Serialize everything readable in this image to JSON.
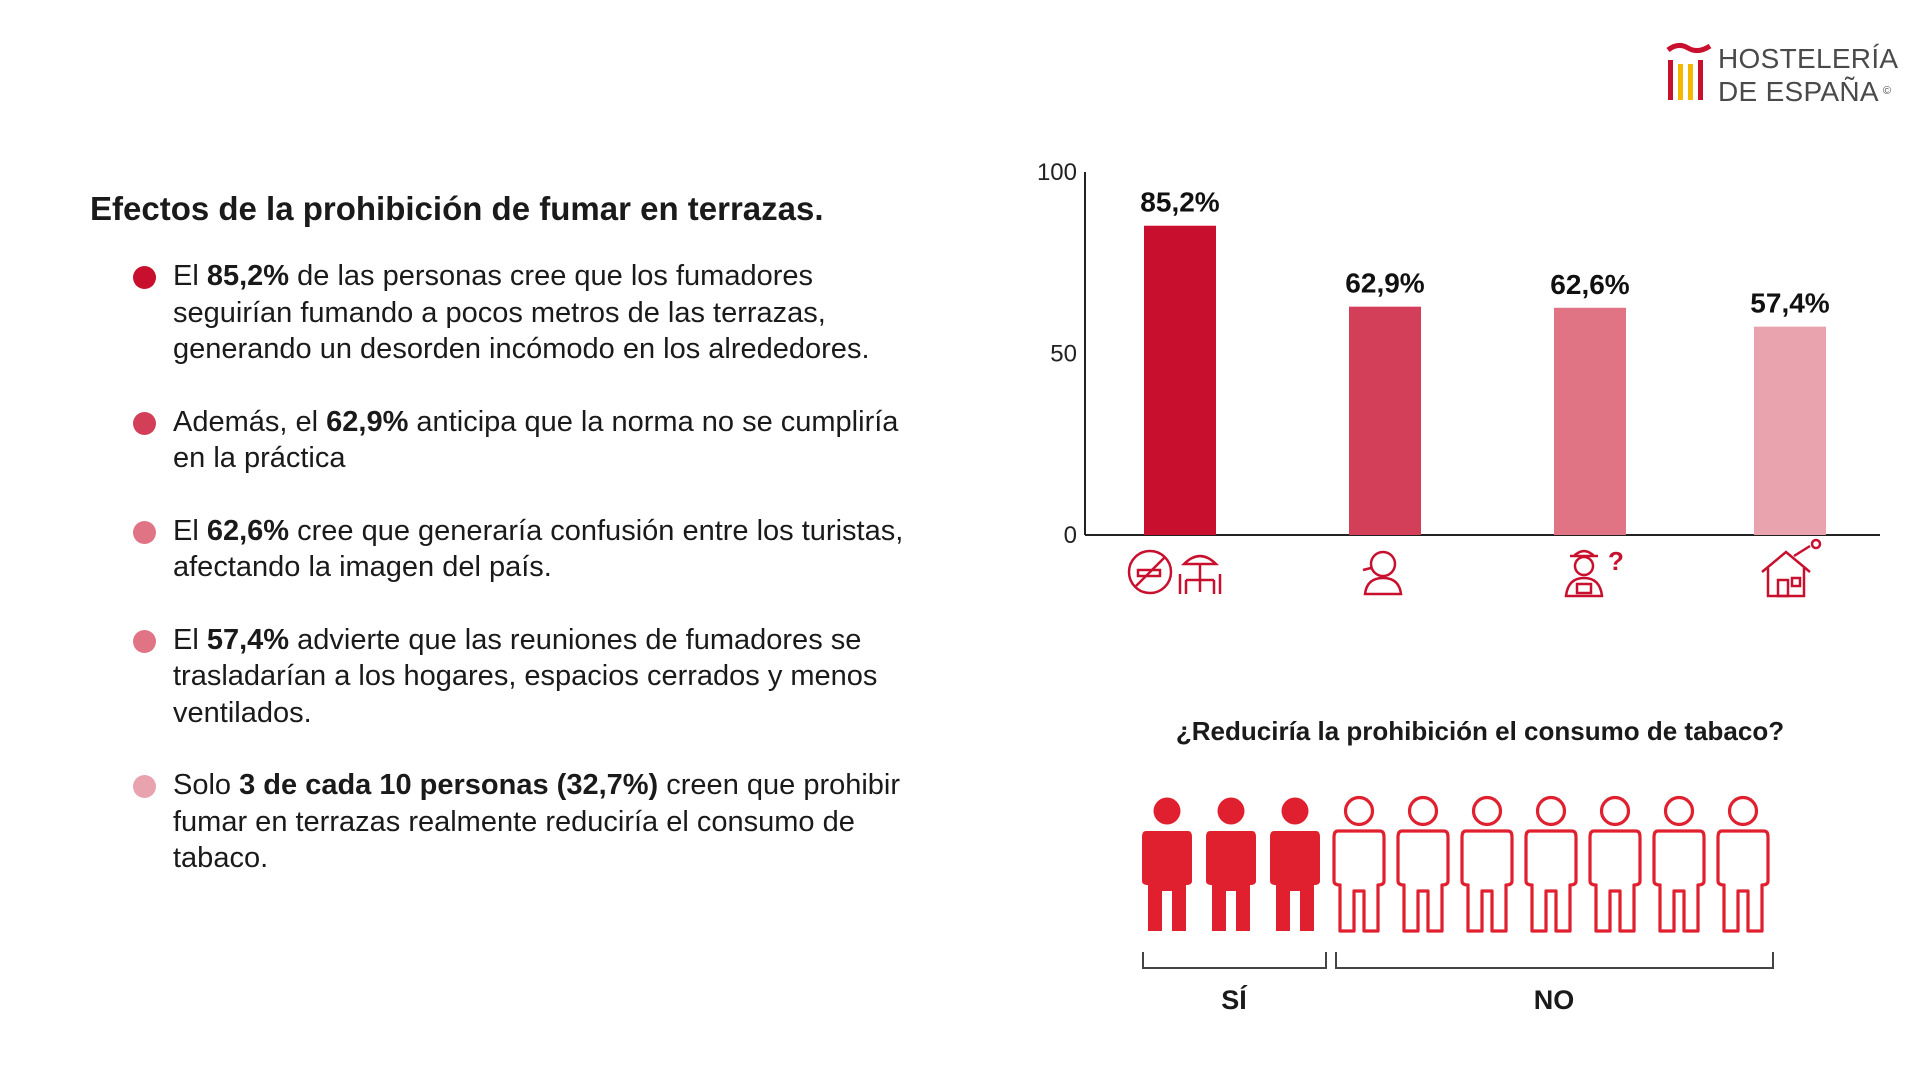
{
  "logo": {
    "line1": "HOSTELERÍA",
    "line2": "DE ESPAÑA",
    "mark": "©",
    "colors": {
      "red": "#c8102e",
      "yellow": "#f5b800"
    }
  },
  "heading": "Efectos de la prohibición de fumar en terrazas.",
  "bullets": [
    {
      "pre": "El ",
      "bold": "85,2%",
      "post": " de las personas cree que los fumadores seguirían fumando a pocos metros de las terrazas, generando un desorden incómodo en los alrededores.",
      "color": "#c8102e"
    },
    {
      "pre": "Además, el ",
      "bold": "62,9%",
      "post": " anticipa que la norma no se cumpliría en la práctica",
      "color": "#d33f58"
    },
    {
      "pre": "El ",
      "bold": "62,6%",
      "post": " cree que generaría confusión entre los turistas, afectando la imagen del país.",
      "color": "#e07384"
    },
    {
      "pre": "El ",
      "bold": "57,4%",
      "post": " advierte que las reuniones de fumadores se trasladarían a los hogares, espacios cerrados y menos ventilados.",
      "color": "#e07384"
    },
    {
      "pre": "Solo ",
      "bold": "3 de cada 10 personas (32,7%)",
      "post": " creen que prohibir fumar en terrazas realmente reduciría el consumo de tabaco.",
      "color": "#e8a3ae"
    }
  ],
  "chart_data": {
    "type": "bar",
    "categories": [
      "no-smoking-terrace-icon",
      "smoker-icon",
      "tourist-confused-icon",
      "smoking-house-icon"
    ],
    "values": [
      85.2,
      62.9,
      62.6,
      57.4
    ],
    "data_labels": [
      "85,2%",
      "62,9%",
      "62,6%",
      "57,4%"
    ],
    "colors": [
      "#c8102e",
      "#d33f58",
      "#e07384",
      "#e8a3ae"
    ],
    "ylim": [
      0,
      100
    ],
    "yticks": [
      0,
      50,
      100
    ],
    "ytick_labels": [
      "0",
      "50",
      "100"
    ],
    "grid": false,
    "title": "",
    "xlabel": "",
    "ylabel": ""
  },
  "people_chart": {
    "title": "¿Reduciría la prohibición el consumo de tabaco?",
    "total": 10,
    "filled": 3,
    "yes_label": "SÍ",
    "no_label": "NO",
    "color": "#e0202f"
  }
}
